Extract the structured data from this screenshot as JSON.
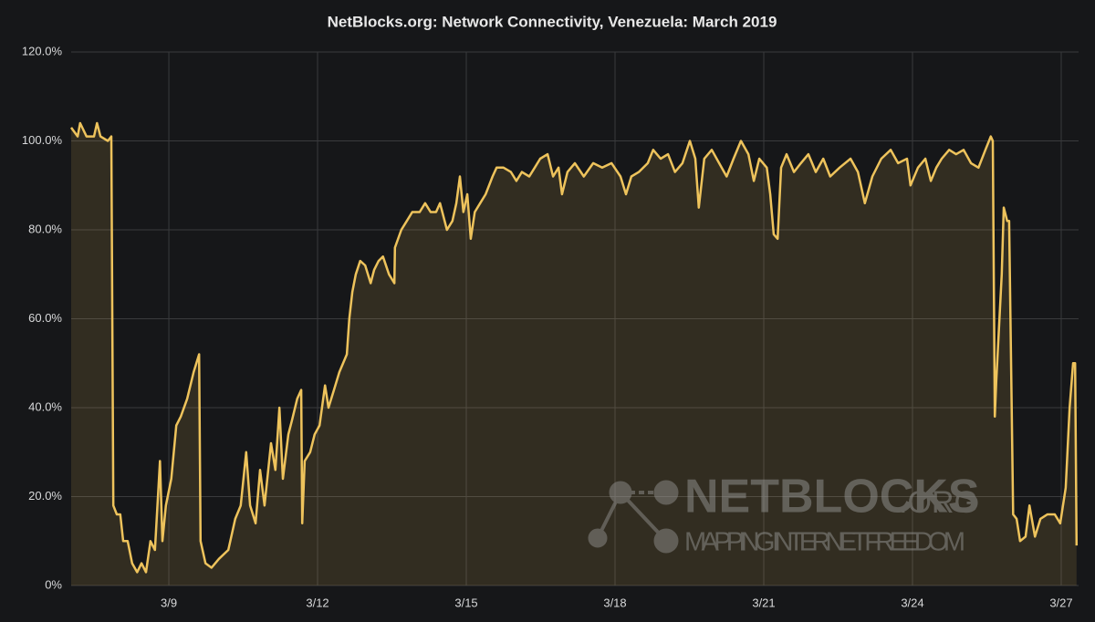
{
  "chart_data": {
    "type": "line",
    "title": "NetBlocks.org: Network Connectivity, Venezuela: March 2019",
    "color": "#eec35c",
    "fill": true,
    "grid": true,
    "xlim": [
      7.03,
      27.35
    ],
    "ylim": [
      0,
      120
    ],
    "xticks": [
      {
        "value": 9,
        "label": "3/9"
      },
      {
        "value": 12,
        "label": "3/12"
      },
      {
        "value": 15,
        "label": "3/15"
      },
      {
        "value": 18,
        "label": "3/18"
      },
      {
        "value": 21,
        "label": "3/21"
      },
      {
        "value": 24,
        "label": "3/24"
      },
      {
        "value": 27,
        "label": "3/27"
      }
    ],
    "yticks": [
      {
        "value": 0,
        "label": "0%"
      },
      {
        "value": 20,
        "label": "20.0%"
      },
      {
        "value": 40,
        "label": "40.0%"
      },
      {
        "value": 60,
        "label": "60.0%"
      },
      {
        "value": 80,
        "label": "80.0%"
      },
      {
        "value": 100,
        "label": "100.0%"
      },
      {
        "value": 120,
        "label": "120.0%"
      }
    ],
    "x": [
      7.03,
      7.16,
      7.21,
      7.34,
      7.49,
      7.55,
      7.62,
      7.77,
      7.84,
      7.88,
      7.95,
      8.02,
      8.08,
      8.17,
      8.26,
      8.36,
      8.45,
      8.54,
      8.63,
      8.72,
      8.82,
      8.87,
      8.94,
      9.05,
      9.15,
      9.24,
      9.37,
      9.5,
      9.61,
      9.64,
      9.74,
      9.86,
      10.01,
      10.2,
      10.34,
      10.45,
      10.56,
      10.64,
      10.75,
      10.84,
      10.93,
      11.06,
      11.15,
      11.23,
      11.3,
      11.41,
      11.48,
      11.59,
      11.67,
      11.69,
      11.74,
      11.85,
      11.94,
      12.04,
      12.15,
      12.22,
      12.33,
      12.44,
      12.59,
      12.64,
      12.7,
      12.77,
      12.86,
      12.96,
      13.07,
      13.14,
      13.23,
      13.32,
      13.44,
      13.55,
      13.56,
      13.69,
      13.8,
      13.91,
      14.06,
      14.17,
      14.28,
      14.39,
      14.47,
      14.61,
      14.72,
      14.8,
      14.87,
      14.94,
      15.02,
      15.09,
      15.17,
      15.28,
      15.39,
      15.53,
      15.61,
      15.75,
      15.9,
      16.01,
      16.12,
      16.27,
      16.38,
      16.49,
      16.64,
      16.75,
      16.86,
      16.93,
      17.04,
      17.19,
      17.37,
      17.56,
      17.74,
      17.93,
      18.11,
      18.22,
      18.33,
      18.48,
      18.66,
      18.77,
      18.92,
      19.07,
      19.21,
      19.36,
      19.51,
      19.62,
      19.69,
      19.8,
      19.95,
      20.1,
      20.25,
      20.39,
      20.54,
      20.69,
      20.8,
      20.91,
      21.06,
      21.13,
      21.2,
      21.28,
      21.35,
      21.46,
      21.61,
      21.75,
      21.9,
      22.05,
      22.2,
      22.34,
      22.53,
      22.75,
      22.9,
      23.04,
      23.19,
      23.37,
      23.56,
      23.71,
      23.89,
      23.96,
      24.11,
      24.26,
      24.37,
      24.48,
      24.59,
      24.74,
      24.88,
      25.03,
      25.18,
      25.33,
      25.47,
      25.58,
      25.62,
      25.66,
      25.69,
      25.8,
      25.84,
      25.91,
      25.95,
      26.03,
      26.1,
      26.17,
      26.28,
      26.36,
      26.47,
      26.58,
      26.72,
      26.87,
      26.98,
      27.09,
      27.17,
      27.24,
      27.28,
      27.31
    ],
    "values": [
      103,
      101,
      104,
      101,
      101,
      104,
      101,
      100,
      101,
      18,
      16,
      16,
      10,
      10,
      5,
      3,
      5,
      3,
      10,
      8,
      28,
      10,
      18,
      24,
      36,
      38,
      42,
      48,
      52,
      10,
      5,
      4,
      6,
      8,
      15,
      18,
      30,
      18,
      14,
      26,
      18,
      32,
      26,
      40,
      24,
      34,
      37,
      42,
      44,
      14,
      28,
      30,
      34,
      36,
      45,
      40,
      44,
      48,
      52,
      60,
      66,
      70,
      73,
      72,
      68,
      71,
      73,
      74,
      70,
      68,
      76,
      80,
      82,
      84,
      84,
      86,
      84,
      84,
      86,
      80,
      82,
      86,
      92,
      84,
      88,
      78,
      84,
      86,
      88,
      92,
      94,
      94,
      93,
      91,
      93,
      92,
      94,
      96,
      97,
      92,
      94,
      88,
      93,
      95,
      92,
      95,
      94,
      95,
      92,
      88,
      92,
      93,
      95,
      98,
      96,
      97,
      93,
      95,
      100,
      96,
      85,
      96,
      98,
      95,
      92,
      96,
      100,
      97,
      91,
      96,
      94,
      88,
      79,
      78,
      94,
      97,
      93,
      95,
      97,
      93,
      96,
      92,
      94,
      96,
      93,
      86,
      92,
      96,
      98,
      95,
      96,
      90,
      94,
      96,
      91,
      94,
      96,
      98,
      97,
      98,
      95,
      94,
      98,
      101,
      100,
      38,
      46,
      70,
      85,
      82,
      82,
      16,
      15,
      10,
      11,
      18,
      11,
      15,
      16,
      16,
      14,
      22,
      40,
      50,
      50,
      9
    ],
    "watermark": {
      "brand": "NETBLOCKS",
      "suffix": ".ORG",
      "tagline": "MAPPING INTERNET FREEDOM"
    }
  }
}
